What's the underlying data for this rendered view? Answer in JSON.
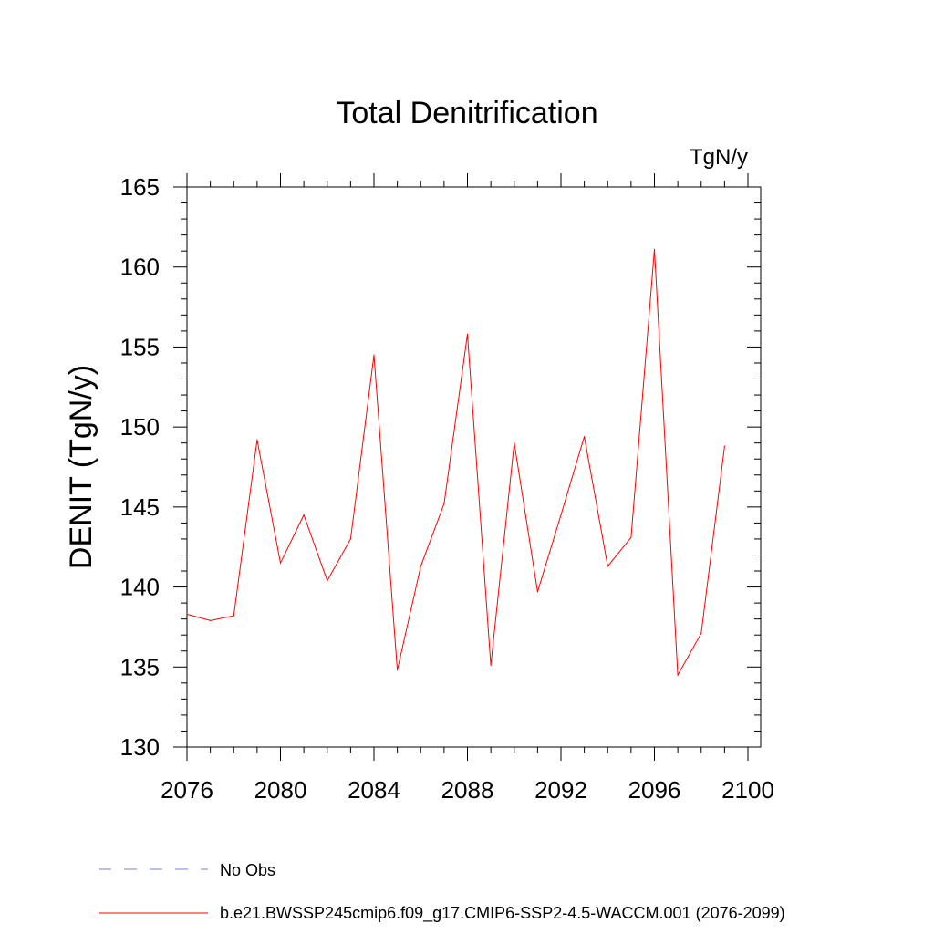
{
  "chart_data": {
    "type": "line",
    "title": "Total Denitrification",
    "units": "TgN/y",
    "ylabel": "DENIT  (TgN/y)",
    "xlabel": "",
    "xlim": [
      2076,
      2100
    ],
    "ylim": [
      130,
      165
    ],
    "x_ticks": [
      2076,
      2080,
      2084,
      2088,
      2092,
      2096,
      2100
    ],
    "y_ticks": [
      130,
      135,
      140,
      145,
      150,
      155,
      160,
      165
    ],
    "grid": false,
    "legend_position": "bottom-left",
    "series": [
      {
        "name": "b.e21.BWSSP245cmip6.f09_g17.CMIP6-SSP2-4.5-WACCM.001 (2076-2099)",
        "color": "#ff0000",
        "style": "solid",
        "x": [
          2076,
          2077,
          2078,
          2079,
          2080,
          2081,
          2082,
          2083,
          2084,
          2085,
          2086,
          2087,
          2088,
          2089,
          2090,
          2091,
          2092,
          2093,
          2094,
          2095,
          2096,
          2097,
          2098,
          2099
        ],
        "values": [
          138.3,
          137.9,
          138.2,
          149.2,
          141.5,
          144.5,
          140.4,
          143.0,
          154.5,
          134.8,
          141.3,
          145.2,
          155.8,
          135.1,
          149.0,
          139.7,
          144.5,
          149.4,
          141.3,
          143.1,
          161.1,
          134.5,
          137.1,
          148.8
        ]
      }
    ],
    "legend": [
      {
        "label": "No Obs",
        "color": "#7f7fcc",
        "style": "dashed"
      },
      {
        "label": "b.e21.BWSSP245cmip6.f09_g17.CMIP6-SSP2-4.5-WACCM.001 (2076-2099)",
        "color": "#ff0000",
        "style": "solid"
      }
    ]
  }
}
